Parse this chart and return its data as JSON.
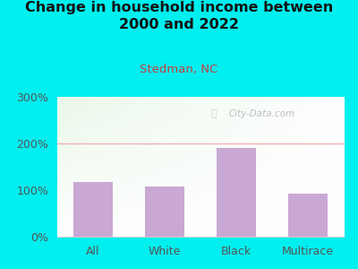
{
  "title": "Change in household income between\n2000 and 2022",
  "subtitle": "Stedman, NC",
  "categories": [
    "All",
    "White",
    "Black",
    "Multirace"
  ],
  "values": [
    118,
    107,
    190,
    93
  ],
  "bar_color": "#c9a8d4",
  "background_color": "#00EFEF",
  "title_fontsize": 11.5,
  "title_color": "#111111",
  "subtitle_fontsize": 9.5,
  "subtitle_color": "#c04040",
  "ylim": [
    0,
    300
  ],
  "yticks": [
    0,
    100,
    200,
    300
  ],
  "tick_label_color": "#555555",
  "tick_fontsize": 9,
  "grid_color": "#f0aaaa",
  "watermark": "City-Data.com",
  "watermark_color": "#aaaaaa"
}
